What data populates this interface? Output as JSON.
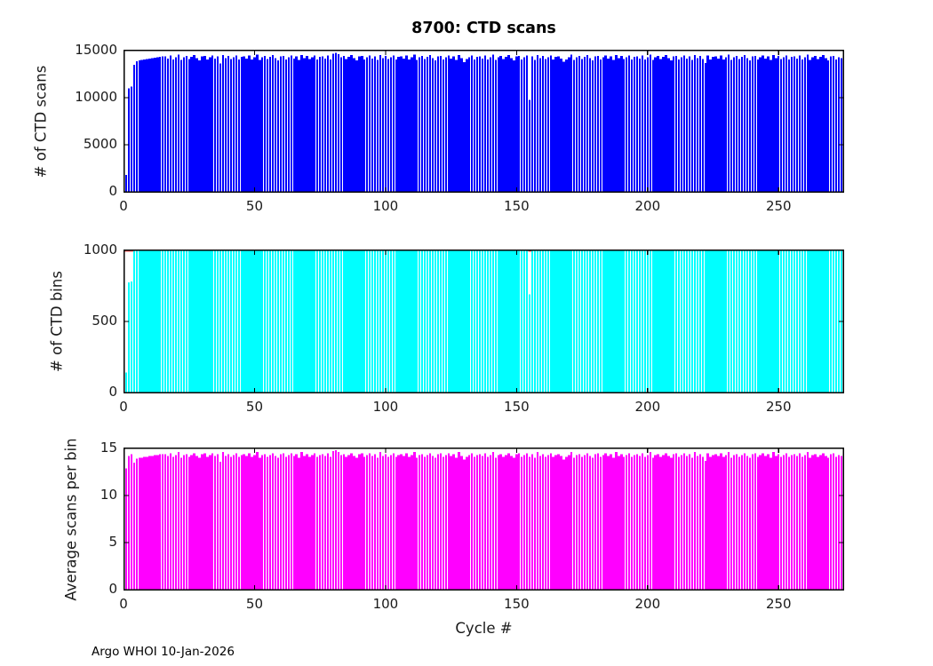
{
  "figure": {
    "title": "8700: CTD scans",
    "xlabel": "Cycle #",
    "footer": "Argo WHOI 10-Jan-2026",
    "x_ticks": [
      0,
      50,
      100,
      150,
      200,
      250
    ],
    "x_max": 275,
    "cycle_start": 1,
    "background": "#ffffff"
  },
  "chart_data": [
    {
      "type": "bar",
      "title": "8700: CTD scans",
      "ylabel": "# of CTD scans",
      "color": "#0000ff",
      "ylim": [
        0,
        15000
      ],
      "y_ticks": [
        0,
        5000,
        10000,
        15000
      ],
      "values": [
        1800,
        11000,
        11200,
        13500,
        13850,
        13950,
        14000,
        14050,
        14100,
        14150,
        14200,
        14250,
        14300,
        14350,
        14400,
        14400,
        14170,
        14490,
        14060,
        14310,
        14560,
        14010,
        14270,
        14430,
        14120,
        14340,
        14520,
        14190,
        13970,
        14390,
        14450,
        14080,
        14290,
        14500,
        14160,
        14370,
        13620,
        14550,
        14220,
        14420,
        14110,
        14310,
        14480,
        14060,
        14330,
        14400,
        14170,
        14490,
        14060,
        14310,
        14560,
        14010,
        14270,
        14430,
        14120,
        14340,
        14520,
        14190,
        13970,
        14390,
        14450,
        14080,
        14290,
        14500,
        14160,
        14370,
        14030,
        14550,
        14220,
        14420,
        14110,
        14310,
        14480,
        14060,
        14330,
        14400,
        14170,
        14490,
        14060,
        14680,
        14750,
        14620,
        14270,
        14430,
        14120,
        14340,
        14520,
        14190,
        13970,
        14390,
        14450,
        14080,
        14290,
        14500,
        14160,
        14370,
        14030,
        14550,
        14220,
        14420,
        14110,
        14310,
        14480,
        14060,
        14330,
        14400,
        14170,
        14490,
        14060,
        14310,
        14560,
        14010,
        14270,
        14430,
        14120,
        14340,
        14520,
        14190,
        13970,
        14390,
        14450,
        14080,
        14290,
        14500,
        14160,
        14370,
        14030,
        14550,
        14220,
        13760,
        14110,
        14310,
        14480,
        14060,
        14330,
        14400,
        14170,
        14490,
        14060,
        14310,
        14560,
        14010,
        14270,
        14430,
        14120,
        14340,
        14520,
        14190,
        13970,
        14390,
        14450,
        14080,
        14290,
        14500,
        9750,
        14370,
        14030,
        14550,
        14220,
        14420,
        14110,
        14310,
        14480,
        14060,
        14330,
        14400,
        14170,
        13820,
        14060,
        14310,
        14560,
        14010,
        14270,
        14430,
        14120,
        14340,
        14520,
        14190,
        13970,
        14390,
        14450,
        14080,
        14290,
        14500,
        14160,
        14370,
        14030,
        14550,
        14220,
        14420,
        14110,
        14310,
        14480,
        14060,
        14330,
        14400,
        14170,
        14490,
        14060,
        14310,
        14560,
        14010,
        14270,
        14430,
        14120,
        14340,
        14520,
        14190,
        13970,
        14390,
        14450,
        14080,
        14290,
        14500,
        14160,
        14370,
        14030,
        14550,
        14220,
        14420,
        14110,
        13700,
        14480,
        14060,
        14330,
        14400,
        14170,
        14490,
        14060,
        14310,
        14560,
        14010,
        14270,
        14430,
        14120,
        14340,
        14520,
        14190,
        13970,
        14390,
        14450,
        14080,
        14290,
        14500,
        14160,
        14370,
        14030,
        14550,
        14220,
        14420,
        14110,
        14310,
        14480,
        14060,
        14330,
        14400,
        14170,
        14490,
        14060,
        14310,
        14560,
        14010,
        14270,
        14430,
        14120,
        14340,
        14520,
        14190,
        13970,
        14390,
        14450,
        14080,
        14290,
        14200
      ]
    },
    {
      "type": "bar",
      "ylabel": "# of CTD bins",
      "color": "#00ffff",
      "ylim": [
        0,
        1000
      ],
      "y_ticks": [
        0,
        500,
        1000
      ],
      "limit_line": {
        "y": 1000,
        "color": "#ff6666",
        "segments": [
          [
            0,
            3.8
          ],
          [
            154.5,
            155.6
          ]
        ]
      },
      "values": [
        140,
        775,
        780,
        1000,
        1000,
        1000,
        1000,
        1000,
        1000,
        1000,
        1000,
        1000,
        1000,
        1000,
        1000,
        1000,
        1000,
        1000,
        1000,
        1000,
        1000,
        1000,
        1000,
        1000,
        1000,
        1000,
        1000,
        1000,
        1000,
        1000,
        1000,
        1000,
        1000,
        1000,
        1000,
        1000,
        1000,
        1000,
        1000,
        1000,
        1000,
        1000,
        1000,
        1000,
        1000,
        1000,
        1000,
        1000,
        1000,
        1000,
        1000,
        1000,
        1000,
        1000,
        1000,
        1000,
        1000,
        1000,
        1000,
        1000,
        1000,
        1000,
        1000,
        1000,
        1000,
        1000,
        1000,
        1000,
        1000,
        1000,
        1000,
        1000,
        1000,
        1000,
        1000,
        1000,
        1000,
        1000,
        1000,
        1000,
        1000,
        1000,
        1000,
        1000,
        1000,
        1000,
        1000,
        1000,
        1000,
        1000,
        1000,
        1000,
        1000,
        1000,
        1000,
        1000,
        1000,
        1000,
        1000,
        1000,
        1000,
        1000,
        1000,
        1000,
        1000,
        1000,
        1000,
        1000,
        1000,
        1000,
        1000,
        1000,
        1000,
        1000,
        1000,
        1000,
        1000,
        1000,
        1000,
        1000,
        1000,
        1000,
        1000,
        1000,
        1000,
        1000,
        1000,
        1000,
        1000,
        1000,
        1000,
        1000,
        1000,
        1000,
        1000,
        1000,
        1000,
        1000,
        1000,
        1000,
        1000,
        1000,
        1000,
        1000,
        1000,
        1000,
        1000,
        1000,
        1000,
        1000,
        1000,
        1000,
        1000,
        1000,
        690,
        1000,
        1000,
        1000,
        1000,
        1000,
        1000,
        1000,
        1000,
        1000,
        1000,
        1000,
        1000,
        1000,
        1000,
        1000,
        1000,
        1000,
        1000,
        1000,
        1000,
        1000,
        1000,
        1000,
        1000,
        1000,
        1000,
        1000,
        1000,
        1000,
        1000,
        1000,
        1000,
        1000,
        1000,
        1000,
        1000,
        1000,
        1000,
        1000,
        1000,
        1000,
        1000,
        1000,
        1000,
        1000,
        1000,
        1000,
        1000,
        1000,
        1000,
        1000,
        1000,
        1000,
        1000,
        1000,
        1000,
        1000,
        1000,
        1000,
        1000,
        1000,
        1000,
        1000,
        1000,
        1000,
        1000,
        1000,
        1000,
        1000,
        1000,
        1000,
        1000,
        1000,
        1000,
        1000,
        1000,
        1000,
        1000,
        1000,
        1000,
        1000,
        1000,
        1000,
        1000,
        1000,
        1000,
        1000,
        1000,
        1000,
        1000,
        1000,
        1000,
        1000,
        1000,
        1000,
        1000,
        1000,
        1000,
        1000,
        1000,
        1000,
        1000,
        1000,
        1000,
        1000,
        1000,
        1000,
        1000,
        1000,
        1000,
        1000,
        1000,
        1000,
        1000,
        1000,
        1000,
        1000,
        1000,
        1000
      ]
    },
    {
      "type": "bar",
      "ylabel": "Average scans per bin",
      "xlabel": "Cycle #",
      "color": "#ff00ff",
      "ylim": [
        0,
        15
      ],
      "y_ticks": [
        0,
        5,
        10,
        15
      ],
      "values": [
        12.9,
        14.2,
        14.4,
        13.5,
        13.9,
        14.0,
        14.0,
        14.1,
        14.1,
        14.2,
        14.2,
        14.3,
        14.3,
        14.4,
        14.4,
        14.4,
        14.2,
        14.5,
        14.1,
        14.3,
        14.6,
        14.0,
        14.3,
        14.4,
        14.1,
        14.3,
        14.5,
        14.2,
        14.0,
        14.4,
        14.5,
        14.1,
        14.3,
        14.5,
        14.2,
        14.4,
        13.6,
        14.6,
        14.2,
        14.4,
        14.1,
        14.3,
        14.5,
        14.1,
        14.3,
        14.4,
        14.2,
        14.5,
        14.1,
        14.3,
        14.6,
        14.0,
        14.3,
        14.4,
        14.1,
        14.3,
        14.5,
        14.2,
        14.0,
        14.4,
        14.5,
        14.1,
        14.3,
        14.5,
        14.2,
        14.4,
        14.0,
        14.6,
        14.2,
        14.4,
        14.1,
        14.3,
        14.5,
        14.1,
        14.3,
        14.4,
        14.2,
        14.5,
        14.1,
        14.7,
        14.8,
        14.6,
        14.3,
        14.4,
        14.1,
        14.3,
        14.5,
        14.2,
        14.0,
        14.4,
        14.5,
        14.1,
        14.3,
        14.5,
        14.2,
        14.4,
        14.0,
        14.6,
        14.2,
        14.4,
        14.1,
        14.3,
        14.5,
        14.1,
        14.3,
        14.4,
        14.2,
        14.5,
        14.1,
        14.3,
        14.6,
        14.0,
        14.3,
        14.4,
        14.1,
        14.3,
        14.5,
        14.2,
        14.0,
        14.4,
        14.5,
        14.1,
        14.3,
        14.5,
        14.2,
        14.4,
        14.0,
        14.6,
        14.2,
        13.8,
        14.1,
        14.3,
        14.5,
        14.1,
        14.3,
        14.4,
        14.2,
        14.5,
        14.1,
        14.3,
        14.6,
        14.0,
        14.3,
        14.4,
        14.1,
        14.3,
        14.5,
        14.2,
        14.0,
        14.4,
        14.5,
        14.1,
        14.3,
        14.5,
        14.1,
        14.4,
        14.0,
        14.6,
        14.2,
        14.4,
        14.1,
        14.3,
        14.5,
        14.1,
        14.3,
        14.4,
        14.2,
        13.8,
        14.1,
        14.3,
        14.6,
        14.0,
        14.3,
        14.4,
        14.1,
        14.3,
        14.5,
        14.2,
        14.0,
        14.4,
        14.5,
        14.1,
        14.3,
        14.5,
        14.2,
        14.4,
        14.0,
        14.6,
        14.2,
        14.4,
        14.1,
        14.3,
        14.5,
        14.1,
        14.3,
        14.4,
        14.2,
        14.5,
        14.1,
        14.3,
        14.6,
        14.0,
        14.3,
        14.4,
        14.1,
        14.3,
        14.5,
        14.2,
        14.0,
        14.4,
        14.5,
        14.1,
        14.3,
        14.5,
        14.2,
        14.4,
        14.0,
        14.6,
        14.2,
        14.4,
        14.1,
        13.7,
        14.5,
        14.1,
        14.3,
        14.4,
        14.2,
        14.5,
        14.1,
        14.3,
        14.6,
        14.0,
        14.3,
        14.4,
        14.1,
        14.3,
        14.5,
        14.2,
        14.0,
        14.4,
        14.5,
        14.1,
        14.3,
        14.5,
        14.2,
        14.4,
        14.0,
        14.6,
        14.2,
        14.4,
        14.1,
        14.3,
        14.5,
        14.1,
        14.3,
        14.4,
        14.2,
        14.5,
        14.1,
        14.3,
        14.6,
        14.0,
        14.3,
        14.4,
        14.1,
        14.3,
        14.5,
        14.2,
        14.0,
        14.4,
        14.5,
        14.1,
        14.3,
        14.2
      ]
    }
  ]
}
